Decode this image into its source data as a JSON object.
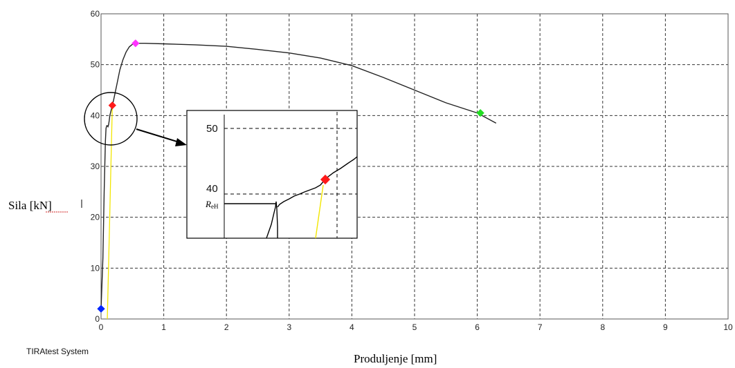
{
  "chart_data": {
    "type": "line",
    "xlabel": "Produljenje [mm]",
    "ylabel": "Sila [kN]",
    "xlim": [
      0,
      10
    ],
    "ylim": [
      0,
      60
    ],
    "x_ticks": [
      "0",
      "1",
      "2",
      "3",
      "4",
      "5",
      "6",
      "7",
      "8",
      "9",
      "10"
    ],
    "y_ticks": [
      "0",
      "10",
      "20",
      "30",
      "40",
      "50",
      "60"
    ],
    "grid": true,
    "grid_style": "dashed",
    "brand": "TIRAtest System",
    "colors": {
      "curve": "#222222",
      "elastic_line": "#f2e600",
      "start_marker": "#0026ff",
      "yield_marker": "#ff1a1a",
      "max_marker": "#ff33ff",
      "break_marker": "#22dd22"
    },
    "series": [
      {
        "x": [
          0.0,
          0.03,
          0.05,
          0.07,
          0.08,
          0.09,
          0.1,
          0.11,
          0.12,
          0.13,
          0.14,
          0.16,
          0.18,
          0.2,
          0.25,
          0.3,
          0.35,
          0.4,
          0.45,
          0.5,
          0.55,
          0.7,
          1.0,
          1.5,
          2.0,
          2.5,
          3.0,
          3.5,
          4.0,
          4.5,
          5.0,
          5.5,
          6.0,
          6.3
        ],
        "y": [
          2.0,
          12.0,
          25.0,
          35.0,
          37.5,
          38.0,
          38.0,
          37.8,
          38.2,
          39.0,
          40.0,
          41.0,
          42.0,
          43.0,
          46.0,
          49.0,
          51.0,
          52.5,
          53.5,
          54.0,
          54.2,
          54.2,
          54.1,
          53.9,
          53.6,
          53.0,
          52.3,
          51.3,
          49.8,
          47.5,
          45.0,
          42.5,
          40.5,
          38.5
        ]
      }
    ],
    "elastic_line": {
      "x": [
        0.1,
        0.18
      ],
      "y": [
        0.0,
        42.0
      ]
    },
    "markers": [
      {
        "x": 0.0,
        "y": 2.0,
        "color": "start_marker"
      },
      {
        "x": 0.18,
        "y": 42.0,
        "color": "yield_marker"
      },
      {
        "x": 0.55,
        "y": 54.2,
        "color": "max_marker"
      },
      {
        "x": 6.05,
        "y": 40.5,
        "color": "break_marker"
      }
    ],
    "inset": {
      "ticks": [
        "50",
        "40"
      ],
      "reh_label": "R",
      "reh_sub": "eH"
    }
  }
}
